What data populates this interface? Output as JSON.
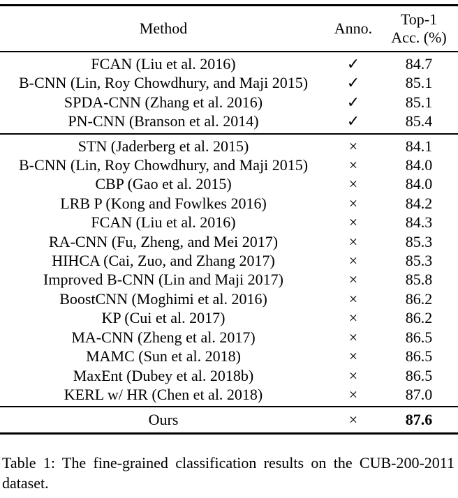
{
  "colors": {
    "background": "#ffffff",
    "text": "#000000",
    "rule": "#000000"
  },
  "table": {
    "header": {
      "method": "Method",
      "anno": "Anno.",
      "acc_line1": "Top-1",
      "acc_line2": "Acc. (%)"
    },
    "sections": [
      {
        "name": "annotated-methods-section",
        "rows": [
          [
            "FCAN (Liu et al. 2016)",
            "✓",
            "84.7"
          ],
          [
            "B-CNN (Lin, Roy Chowdhury, and Maji 2015)",
            "✓",
            "85.1"
          ],
          [
            "SPDA-CNN (Zhang et al. 2016)",
            "✓",
            "85.1"
          ],
          [
            "PN-CNN (Branson et al. 2014)",
            "✓",
            "85.4"
          ]
        ]
      },
      {
        "name": "unannotated-methods-section",
        "rows": [
          [
            "STN (Jaderberg et al. 2015)",
            "×",
            "84.1"
          ],
          [
            "B-CNN (Lin, Roy Chowdhury, and Maji 2015)",
            "×",
            "84.0"
          ],
          [
            "CBP (Gao et al. 2015)",
            "×",
            "84.0"
          ],
          [
            "LRB P (Kong and Fowlkes 2016)",
            "×",
            "84.2"
          ],
          [
            "FCAN (Liu et al. 2016)",
            "×",
            "84.3"
          ],
          [
            "RA-CNN (Fu, Zheng, and Mei 2017)",
            "×",
            "85.3"
          ],
          [
            "HIHCA (Cai, Zuo, and Zhang 2017)",
            "×",
            "85.3"
          ],
          [
            "Improved B-CNN (Lin and Maji 2017)",
            "×",
            "85.8"
          ],
          [
            "BoostCNN (Moghimi et al. 2016)",
            "×",
            "86.2"
          ],
          [
            "KP (Cui et al. 2017)",
            "×",
            "86.2"
          ],
          [
            "MA-CNN (Zheng et al. 2017)",
            "×",
            "86.5"
          ],
          [
            "MAMC (Sun et al. 2018)",
            "×",
            "86.5"
          ],
          [
            "MaxEnt (Dubey et al. 2018b)",
            "×",
            "86.5"
          ],
          [
            "KERL w/ HR (Chen et al. 2018)",
            "×",
            "87.0"
          ]
        ]
      },
      {
        "name": "ours-section",
        "bold_acc": true,
        "rows": [
          [
            "Ours",
            "×",
            "87.6"
          ]
        ]
      }
    ]
  },
  "caption": {
    "text": "Table 1: The fine-grained classification results on the CUB-200-2011 dataset."
  }
}
